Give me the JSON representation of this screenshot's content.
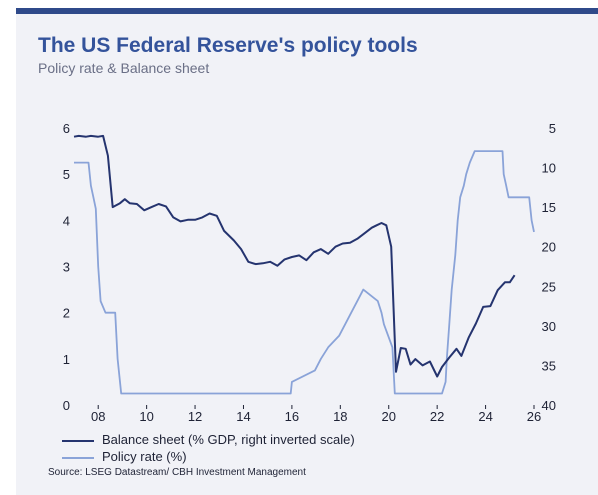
{
  "header": {
    "title": "The US Federal Reserve's policy tools",
    "subtitle": "Policy rate & Balance sheet"
  },
  "legend": [
    {
      "label": "Balance sheet (% GDP, right inverted scale)",
      "color": "#25346f"
    },
    {
      "label": "Policy rate (%)",
      "color": "#8aa3d8"
    }
  ],
  "source": "Source: LSEG Datastream/ CBH Investment Management",
  "colors": {
    "accent": "#2f4a8a",
    "panel": "#f1f2f7"
  },
  "chart_data": {
    "type": "line",
    "xlim": [
      2007,
      2026
    ],
    "ylim_left": [
      0,
      6
    ],
    "ylim_right": [
      5,
      40
    ],
    "right_axis_inverted": true,
    "x_ticks": [
      {
        "value": 2008,
        "label": "08"
      },
      {
        "value": 2010,
        "label": "10"
      },
      {
        "value": 2012,
        "label": "12"
      },
      {
        "value": 2014,
        "label": "14"
      },
      {
        "value": 2016,
        "label": "16"
      },
      {
        "value": 2018,
        "label": "18"
      },
      {
        "value": 2020,
        "label": "20"
      },
      {
        "value": 2022,
        "label": "22"
      },
      {
        "value": 2024,
        "label": "24"
      },
      {
        "value": 2026,
        "label": "26"
      }
    ],
    "left_ticks": [
      "0",
      "1",
      "2",
      "3",
      "4",
      "5",
      "6"
    ],
    "right_ticks": [
      "5",
      "10",
      "15",
      "20",
      "25",
      "30",
      "35",
      "40"
    ],
    "series": [
      {
        "name": "Balance sheet (% GDP, right inverted scale)",
        "axis": "right",
        "color": "#25346f",
        "points": [
          [
            2007.0,
            6.1
          ],
          [
            2007.2,
            6.0
          ],
          [
            2007.5,
            6.1
          ],
          [
            2007.7,
            6.0
          ],
          [
            2008.0,
            6.1
          ],
          [
            2008.2,
            6.0
          ],
          [
            2008.4,
            8.5
          ],
          [
            2008.6,
            15.0
          ],
          [
            2008.9,
            14.5
          ],
          [
            2009.1,
            14.0
          ],
          [
            2009.3,
            14.5
          ],
          [
            2009.6,
            14.6
          ],
          [
            2009.9,
            15.4
          ],
          [
            2010.2,
            15.0
          ],
          [
            2010.5,
            14.6
          ],
          [
            2010.8,
            14.9
          ],
          [
            2011.1,
            16.3
          ],
          [
            2011.4,
            16.8
          ],
          [
            2011.7,
            16.6
          ],
          [
            2012.0,
            16.6
          ],
          [
            2012.3,
            16.3
          ],
          [
            2012.6,
            15.8
          ],
          [
            2012.9,
            16.1
          ],
          [
            2013.2,
            18.0
          ],
          [
            2013.6,
            19.2
          ],
          [
            2013.9,
            20.3
          ],
          [
            2014.2,
            21.9
          ],
          [
            2014.5,
            22.2
          ],
          [
            2014.8,
            22.1
          ],
          [
            2015.1,
            21.9
          ],
          [
            2015.4,
            22.4
          ],
          [
            2015.7,
            21.6
          ],
          [
            2016.0,
            21.3
          ],
          [
            2016.3,
            21.1
          ],
          [
            2016.6,
            21.7
          ],
          [
            2016.9,
            20.7
          ],
          [
            2017.2,
            20.3
          ],
          [
            2017.5,
            20.9
          ],
          [
            2017.8,
            20.0
          ],
          [
            2018.1,
            19.6
          ],
          [
            2018.4,
            19.5
          ],
          [
            2018.7,
            19.0
          ],
          [
            2019.0,
            18.3
          ],
          [
            2019.3,
            17.6
          ],
          [
            2019.5,
            17.3
          ],
          [
            2019.7,
            17.0
          ],
          [
            2019.9,
            17.3
          ],
          [
            2020.1,
            20.0
          ],
          [
            2020.3,
            35.8
          ],
          [
            2020.5,
            32.8
          ],
          [
            2020.7,
            32.9
          ],
          [
            2020.9,
            34.9
          ],
          [
            2021.1,
            34.2
          ],
          [
            2021.4,
            35.0
          ],
          [
            2021.7,
            34.5
          ],
          [
            2022.0,
            36.4
          ],
          [
            2022.2,
            35.2
          ],
          [
            2022.5,
            34.0
          ],
          [
            2022.8,
            32.9
          ],
          [
            2023.0,
            33.8
          ],
          [
            2023.3,
            31.5
          ],
          [
            2023.6,
            29.7
          ],
          [
            2023.9,
            27.6
          ],
          [
            2024.2,
            27.5
          ],
          [
            2024.5,
            25.5
          ],
          [
            2024.8,
            24.5
          ],
          [
            2025.0,
            24.5
          ],
          [
            2025.2,
            23.6
          ]
        ]
      },
      {
        "name": "Policy rate (%)",
        "axis": "left",
        "color": "#8aa3d8",
        "points": [
          [
            2007.0,
            5.25
          ],
          [
            2007.6,
            5.25
          ],
          [
            2007.7,
            4.75
          ],
          [
            2007.8,
            4.5
          ],
          [
            2007.9,
            4.25
          ],
          [
            2008.0,
            3.0
          ],
          [
            2008.1,
            2.25
          ],
          [
            2008.3,
            2.0
          ],
          [
            2008.7,
            2.0
          ],
          [
            2008.8,
            1.0
          ],
          [
            2008.95,
            0.25
          ],
          [
            2015.95,
            0.25
          ],
          [
            2016.0,
            0.5
          ],
          [
            2016.95,
            0.75
          ],
          [
            2017.2,
            1.0
          ],
          [
            2017.5,
            1.25
          ],
          [
            2017.95,
            1.5
          ],
          [
            2018.2,
            1.75
          ],
          [
            2018.45,
            2.0
          ],
          [
            2018.7,
            2.25
          ],
          [
            2018.95,
            2.5
          ],
          [
            2019.55,
            2.25
          ],
          [
            2019.7,
            2.0
          ],
          [
            2019.8,
            1.75
          ],
          [
            2020.15,
            1.25
          ],
          [
            2020.25,
            0.25
          ],
          [
            2022.2,
            0.25
          ],
          [
            2022.35,
            0.5
          ],
          [
            2022.4,
            1.0
          ],
          [
            2022.5,
            1.75
          ],
          [
            2022.6,
            2.5
          ],
          [
            2022.75,
            3.25
          ],
          [
            2022.85,
            4.0
          ],
          [
            2022.95,
            4.5
          ],
          [
            2023.1,
            4.75
          ],
          [
            2023.2,
            5.0
          ],
          [
            2023.35,
            5.25
          ],
          [
            2023.55,
            5.5
          ],
          [
            2024.7,
            5.5
          ],
          [
            2024.75,
            5.0
          ],
          [
            2024.85,
            4.75
          ],
          [
            2024.95,
            4.5
          ],
          [
            2025.8,
            4.5
          ],
          [
            2025.9,
            4.0
          ],
          [
            2026.0,
            3.75
          ]
        ]
      }
    ]
  }
}
